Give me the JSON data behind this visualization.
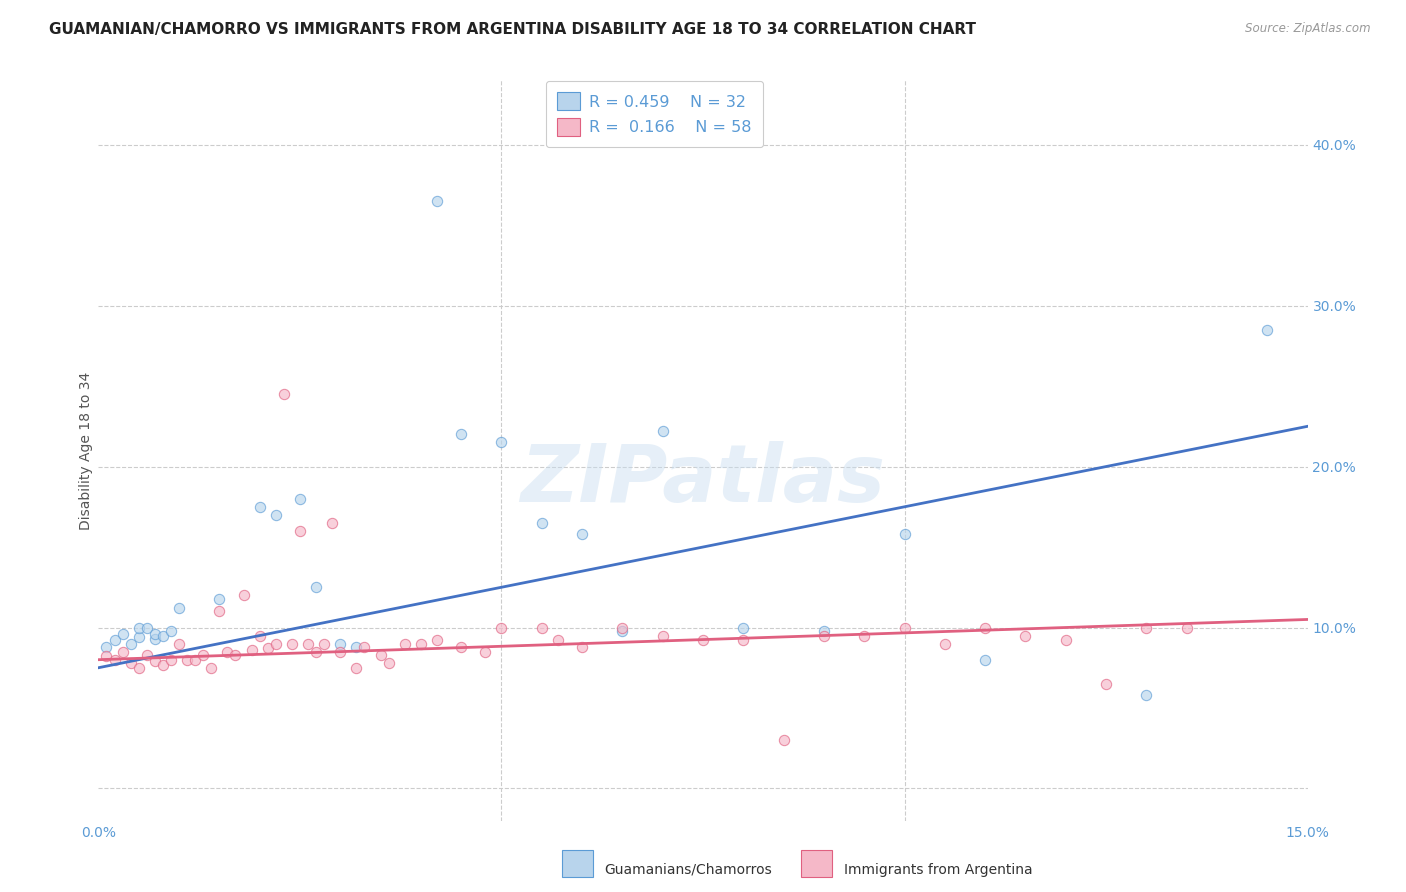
{
  "title": "GUAMANIAN/CHAMORRO VS IMMIGRANTS FROM ARGENTINA DISABILITY AGE 18 TO 34 CORRELATION CHART",
  "source": "Source: ZipAtlas.com",
  "ylabel": "Disability Age 18 to 34",
  "xlim": [
    0.0,
    0.15
  ],
  "ylim": [
    -0.02,
    0.44
  ],
  "yticks": [
    0.0,
    0.1,
    0.2,
    0.3,
    0.4
  ],
  "xticks": [
    0.0,
    0.05,
    0.1,
    0.15
  ],
  "blue_color": "#b8d4ec",
  "pink_color": "#f5b8c8",
  "blue_edge_color": "#5b9bd5",
  "pink_edge_color": "#e06080",
  "blue_line_color": "#4472c4",
  "pink_line_color": "#e060a0",
  "legend_R1": "0.459",
  "legend_N1": "32",
  "legend_R2": "0.166",
  "legend_N2": "58",
  "legend_label1": "Guamanians/Chamorros",
  "legend_label2": "Immigrants from Argentina",
  "blue_scatter_x": [
    0.001,
    0.002,
    0.003,
    0.004,
    0.005,
    0.005,
    0.006,
    0.007,
    0.007,
    0.008,
    0.009,
    0.01,
    0.015,
    0.02,
    0.022,
    0.025,
    0.027,
    0.03,
    0.032,
    0.042,
    0.045,
    0.05,
    0.055,
    0.06,
    0.065,
    0.07,
    0.08,
    0.09,
    0.1,
    0.11,
    0.13,
    0.145
  ],
  "blue_scatter_y": [
    0.088,
    0.092,
    0.096,
    0.09,
    0.094,
    0.1,
    0.1,
    0.093,
    0.096,
    0.095,
    0.098,
    0.112,
    0.118,
    0.175,
    0.17,
    0.18,
    0.125,
    0.09,
    0.088,
    0.365,
    0.22,
    0.215,
    0.165,
    0.158,
    0.098,
    0.222,
    0.1,
    0.098,
    0.158,
    0.08,
    0.058,
    0.285
  ],
  "pink_scatter_x": [
    0.001,
    0.002,
    0.003,
    0.004,
    0.005,
    0.006,
    0.007,
    0.008,
    0.009,
    0.01,
    0.011,
    0.012,
    0.013,
    0.014,
    0.015,
    0.016,
    0.017,
    0.018,
    0.019,
    0.02,
    0.021,
    0.022,
    0.023,
    0.024,
    0.025,
    0.026,
    0.027,
    0.028,
    0.029,
    0.03,
    0.032,
    0.033,
    0.035,
    0.036,
    0.038,
    0.04,
    0.042,
    0.045,
    0.048,
    0.05,
    0.055,
    0.057,
    0.06,
    0.065,
    0.07,
    0.075,
    0.08,
    0.085,
    0.09,
    0.095,
    0.1,
    0.105,
    0.11,
    0.115,
    0.12,
    0.125,
    0.13,
    0.135
  ],
  "pink_scatter_y": [
    0.082,
    0.08,
    0.085,
    0.078,
    0.075,
    0.083,
    0.079,
    0.077,
    0.08,
    0.09,
    0.08,
    0.08,
    0.083,
    0.075,
    0.11,
    0.085,
    0.083,
    0.12,
    0.086,
    0.095,
    0.087,
    0.09,
    0.245,
    0.09,
    0.16,
    0.09,
    0.085,
    0.09,
    0.165,
    0.085,
    0.075,
    0.088,
    0.083,
    0.078,
    0.09,
    0.09,
    0.092,
    0.088,
    0.085,
    0.1,
    0.1,
    0.092,
    0.088,
    0.1,
    0.095,
    0.092,
    0.092,
    0.03,
    0.095,
    0.095,
    0.1,
    0.09,
    0.1,
    0.095,
    0.092,
    0.065,
    0.1,
    0.1
  ],
  "blue_line_x0": 0.0,
  "blue_line_x1": 0.15,
  "blue_line_y0": 0.075,
  "blue_line_y1": 0.225,
  "pink_line_x0": 0.0,
  "pink_line_x1": 0.15,
  "pink_line_y0": 0.08,
  "pink_line_y1": 0.105,
  "watermark": "ZIPatlas",
  "background_color": "#ffffff",
  "grid_color": "#cccccc",
  "title_fontsize": 11,
  "axis_label_fontsize": 10,
  "tick_fontsize": 10,
  "scatter_size": 55,
  "scatter_alpha": 0.65
}
